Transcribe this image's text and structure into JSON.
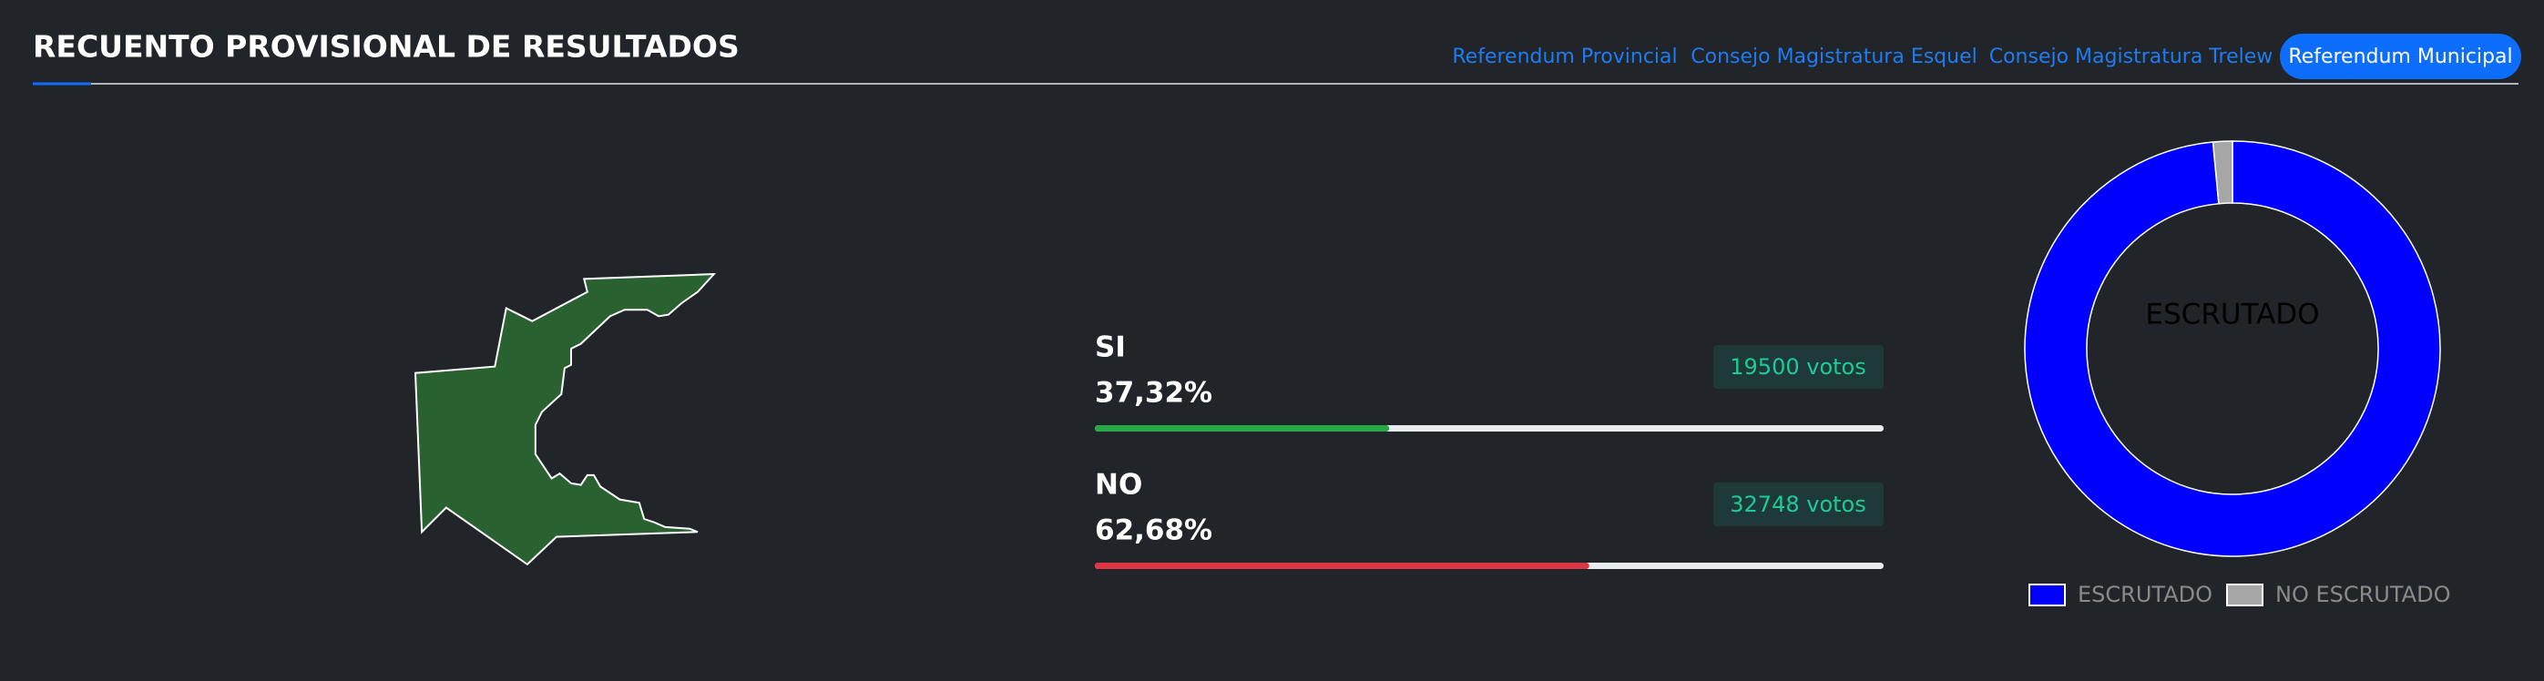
{
  "header": {
    "title": "RECUENTO PROVISIONAL DE RESULTADOS"
  },
  "tabs": [
    {
      "label": "Referendum Provincial",
      "active": false
    },
    {
      "label": "Consejo Magistratura Esquel",
      "active": false
    },
    {
      "label": "Consejo Magistratura Trelew",
      "active": false
    },
    {
      "label": "Referendum Municipal",
      "active": true
    }
  ],
  "results": [
    {
      "label": "SI",
      "percent": 37.32,
      "percent_label": "37,32%",
      "votes_label": "19500 votos",
      "color": "#28a745"
    },
    {
      "label": "NO",
      "percent": 62.68,
      "percent_label": "62,68%",
      "votes_label": "32748 votos",
      "color": "#dc3545"
    }
  ],
  "chart_data": {
    "type": "doughnut",
    "center_label": "ESCRUTADO",
    "categories": [
      "ESCRUTADO",
      "NO ESCRUTADO"
    ],
    "values": [
      98.5,
      1.5
    ],
    "colors": [
      "#0000ff",
      "#a6a6a6"
    ]
  }
}
